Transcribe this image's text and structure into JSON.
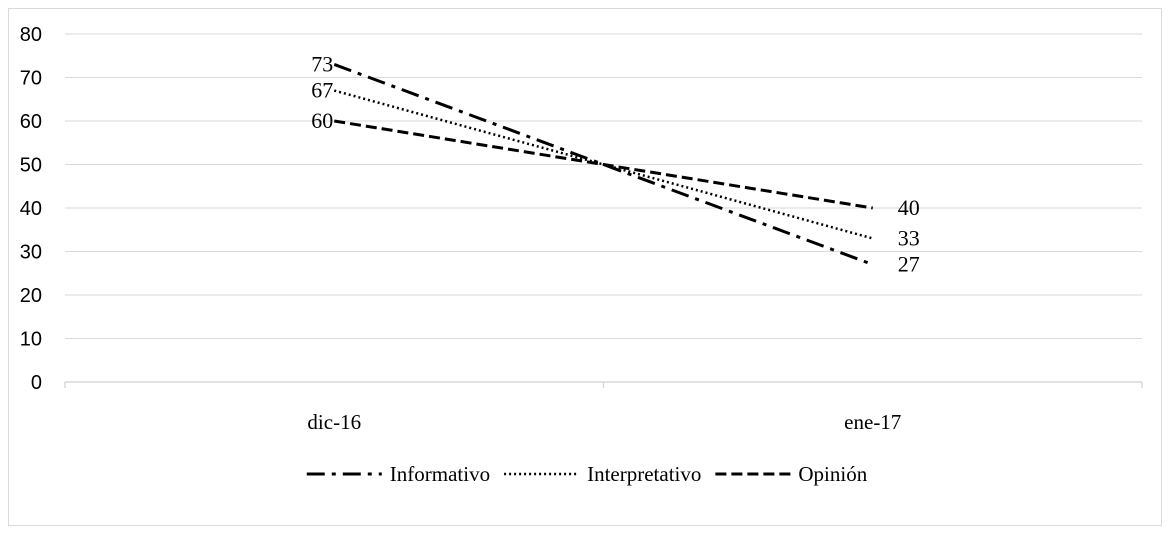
{
  "chart_data": {
    "type": "line",
    "title": "",
    "xlabel": "",
    "ylabel": "",
    "categories": [
      "dic-16",
      "ene-17"
    ],
    "ylim": [
      0,
      80
    ],
    "yticks": [
      0,
      10,
      20,
      30,
      40,
      50,
      60,
      70,
      80
    ],
    "grid": true,
    "legend_position": "bottom",
    "series": [
      {
        "name": "Informativo",
        "values": [
          73,
          27
        ],
        "labels": [
          "73",
          "27"
        ],
        "dash": "dash-dot",
        "color": "#000000"
      },
      {
        "name": "Interpretativo",
        "values": [
          67,
          33
        ],
        "labels": [
          "67",
          "33"
        ],
        "dash": "dotted",
        "color": "#000000"
      },
      {
        "name": "Opinión",
        "values": [
          60,
          40
        ],
        "labels": [
          "60",
          "40"
        ],
        "dash": "dashed",
        "color": "#000000"
      }
    ],
    "gridline_color": "#d9d9d9"
  }
}
